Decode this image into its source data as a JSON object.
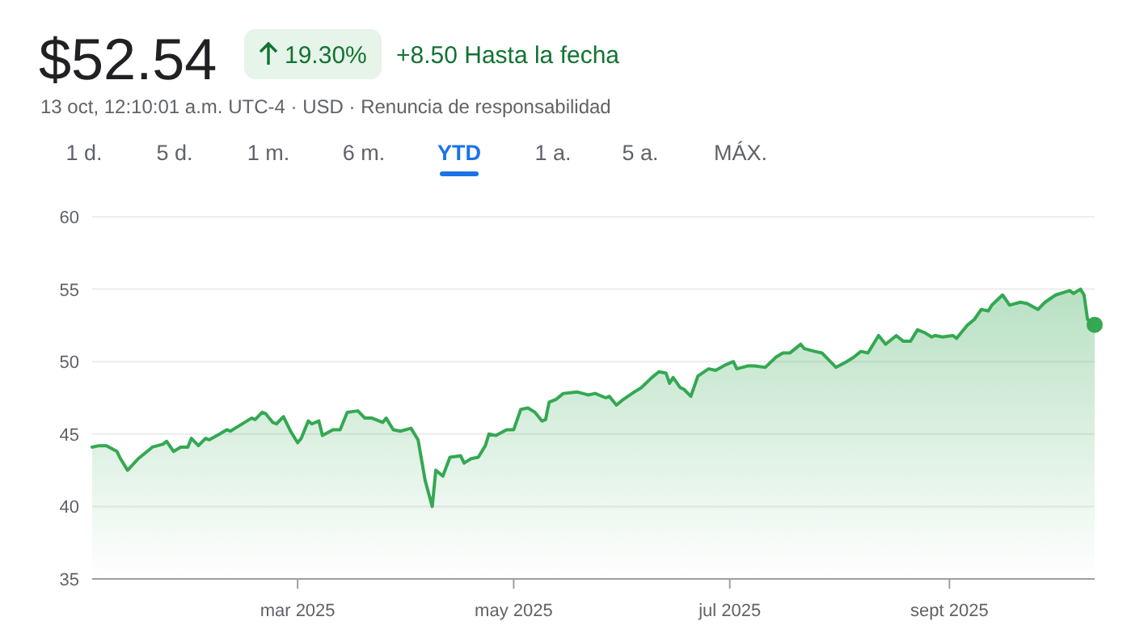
{
  "chart_data": {
    "type": "area",
    "title": "$52.54",
    "subtitle": "13 oct, 12:10:01 a.m. UTC-4 · USD · Renuncia de responsabilidad",
    "annotations": [
      "19.30%",
      "+8.50 Hasta la fecha",
      "1 d.",
      "5 d.",
      "1 m.",
      "6 m.",
      "YTD",
      "1 a.",
      "5 a.",
      "MÁX."
    ],
    "x": [
      "2025-01-02",
      "2025-01-04",
      "2025-01-06",
      "2025-01-09",
      "2025-01-10",
      "2025-01-12",
      "2025-01-15",
      "2025-01-16",
      "2025-01-19",
      "2025-01-22",
      "2025-01-23",
      "2025-01-25",
      "2025-01-27",
      "2025-01-29",
      "2025-01-30",
      "2025-02-01",
      "2025-02-03",
      "2025-02-04",
      "2025-02-07",
      "2025-02-09",
      "2025-02-10",
      "2025-02-12",
      "2025-02-16",
      "2025-02-17",
      "2025-02-19",
      "2025-02-20",
      "2025-02-22",
      "2025-02-23",
      "2025-02-25",
      "2025-02-27",
      "2025-03-01",
      "2025-03-02",
      "2025-03-04",
      "2025-03-05",
      "2025-03-07",
      "2025-03-08",
      "2025-03-11",
      "2025-03-13",
      "2025-03-15",
      "2025-03-18",
      "2025-03-20",
      "2025-03-22",
      "2025-03-25",
      "2025-03-26",
      "2025-03-28",
      "2025-03-30",
      "2025-04-02",
      "2025-04-04",
      "2025-04-06",
      "2025-04-08",
      "2025-04-09",
      "2025-04-11",
      "2025-04-13",
      "2025-04-16",
      "2025-04-17",
      "2025-04-19",
      "2025-04-21",
      "2025-04-23",
      "2025-04-24",
      "2025-04-26",
      "2025-04-29",
      "2025-05-01",
      "2025-05-03",
      "2025-05-05",
      "2025-05-07",
      "2025-05-09",
      "2025-05-10",
      "2025-05-11",
      "2025-05-13",
      "2025-05-15",
      "2025-05-19",
      "2025-05-22",
      "2025-05-24",
      "2025-05-27",
      "2025-05-28",
      "2025-05-30",
      "2025-06-01",
      "2025-06-04",
      "2025-06-06",
      "2025-06-09",
      "2025-06-11",
      "2025-06-13",
      "2025-06-14",
      "2025-06-15",
      "2025-06-17",
      "2025-06-18",
      "2025-06-20",
      "2025-06-22",
      "2025-06-25",
      "2025-06-27",
      "2025-06-30",
      "2025-07-02",
      "2025-07-03",
      "2025-07-06",
      "2025-07-08",
      "2025-07-11",
      "2025-07-14",
      "2025-07-16",
      "2025-07-18",
      "2025-07-19",
      "2025-07-21",
      "2025-07-22",
      "2025-07-25",
      "2025-07-27",
      "2025-07-29",
      "2025-07-31",
      "2025-08-03",
      "2025-08-05",
      "2025-08-07",
      "2025-08-09",
      "2025-08-12",
      "2025-08-14",
      "2025-08-17",
      "2025-08-19",
      "2025-08-21",
      "2025-08-23",
      "2025-08-25",
      "2025-08-27",
      "2025-08-28",
      "2025-08-30",
      "2025-09-02",
      "2025-09-03",
      "2025-09-06",
      "2025-09-08",
      "2025-09-10",
      "2025-09-12",
      "2025-09-13",
      "2025-09-16",
      "2025-09-18",
      "2025-09-21",
      "2025-09-23",
      "2025-09-26",
      "2025-09-28",
      "2025-10-01",
      "2025-10-05",
      "2025-10-06",
      "2025-10-08",
      "2025-10-09",
      "2025-10-10",
      "2025-10-12"
    ],
    "series": [
      {
        "color": "#34a853",
        "values": [
          44.1,
          44.2,
          44.2,
          43.8,
          43.3,
          42.5,
          43.3,
          43.5,
          44.1,
          44.3,
          44.5,
          43.8,
          44.1,
          44.1,
          44.7,
          44.2,
          44.7,
          44.6,
          45.0,
          45.3,
          45.2,
          45.5,
          46.1,
          46.0,
          46.5,
          46.4,
          45.8,
          45.7,
          46.2,
          45.2,
          44.4,
          44.7,
          45.9,
          45.7,
          45.9,
          44.9,
          45.3,
          45.3,
          46.5,
          46.6,
          46.1,
          46.1,
          45.8,
          46.1,
          45.3,
          45.2,
          45.4,
          44.6,
          41.8,
          40.0,
          42.5,
          42.1,
          43.4,
          43.5,
          43.0,
          43.3,
          43.4,
          44.2,
          45.0,
          44.9,
          45.3,
          45.3,
          46.7,
          46.8,
          46.5,
          45.9,
          46.0,
          47.2,
          47.4,
          47.8,
          47.9,
          47.7,
          47.8,
          47.5,
          47.6,
          47.0,
          47.4,
          47.9,
          48.2,
          48.9,
          49.3,
          49.2,
          48.5,
          48.9,
          48.2,
          48.1,
          47.6,
          49.0,
          49.5,
          49.4,
          49.8,
          50.0,
          49.5,
          49.7,
          49.7,
          49.6,
          50.3,
          50.6,
          50.6,
          50.8,
          51.2,
          50.9,
          50.7,
          50.6,
          50.1,
          49.6,
          50.0,
          50.3,
          50.7,
          50.6,
          51.8,
          51.2,
          51.8,
          51.4,
          51.4,
          52.2,
          52.0,
          51.7,
          51.8,
          51.7,
          51.8,
          51.6,
          52.5,
          52.9,
          53.6,
          53.5,
          53.9,
          54.6,
          53.9,
          54.1,
          54.0,
          53.6,
          54.1,
          54.6,
          54.9,
          54.7,
          55.0,
          54.6,
          52.9,
          52.54
        ]
      }
    ],
    "xlim": [
      "2025-01-02",
      "2025-10-12"
    ],
    "xticks": [
      {
        "value": "2025-03-01",
        "label": "mar 2025"
      },
      {
        "value": "2025-05-01",
        "label": "may 2025"
      },
      {
        "value": "2025-07-01",
        "label": "jul 2025"
      },
      {
        "value": "2025-09-01",
        "label": "sept 2025"
      }
    ],
    "ylim": [
      35,
      60
    ],
    "yticks": [
      35,
      40,
      45,
      50,
      55,
      60
    ],
    "grid": "y",
    "marker": "none",
    "line_style": "solid"
  }
}
